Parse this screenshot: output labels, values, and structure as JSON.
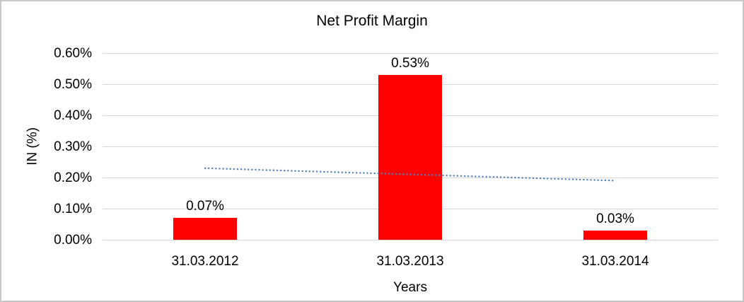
{
  "chart_data": {
    "type": "bar",
    "title": "Net Profit Margin",
    "xlabel": "Years",
    "ylabel": "IN (%)",
    "categories": [
      "31.03.2012",
      "31.03.2013",
      "31.03.2014"
    ],
    "values": [
      0.07,
      0.53,
      0.03
    ],
    "value_labels": [
      "0.07%",
      "0.53%",
      "0.03%"
    ],
    "ytick_labels": [
      "0.60%",
      "0.50%",
      "0.40%",
      "0.30%",
      "0.20%",
      "0.10%",
      "0.00%"
    ],
    "ytick_values": [
      0.6,
      0.5,
      0.4,
      0.3,
      0.2,
      0.1,
      0.0
    ],
    "ylim": [
      0,
      0.6
    ],
    "grid": true,
    "legend": false,
    "bar_color": "#ff0000",
    "gridline_color": "#d9d9d9",
    "trendline": {
      "type": "linear",
      "style": "dotted",
      "color": "#4f81bd",
      "start_value": 0.23,
      "end_value": 0.19
    }
  }
}
